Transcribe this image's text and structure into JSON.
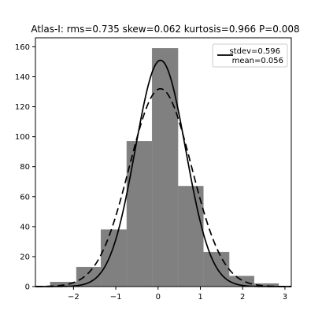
{
  "chart_data": {
    "type": "histogram",
    "title": "Atlas-I:   rms=0.735  skew=0.062   kurtosis=0.966   P=0.008",
    "xlim": [
      -2.9,
      3.15
    ],
    "ylim": [
      0,
      166
    ],
    "xticks": [
      -2,
      -1,
      0,
      1,
      2,
      3
    ],
    "xtick_labels": [
      "−2",
      "−1",
      "0",
      "1",
      "2",
      "3"
    ],
    "yticks": [
      0,
      20,
      40,
      60,
      80,
      100,
      120,
      140,
      160
    ],
    "ytick_labels": [
      "0",
      "20",
      "40",
      "60",
      "80",
      "100",
      "120",
      "140",
      "160"
    ],
    "bins": [
      {
        "x0": -2.55,
        "x1": -1.93,
        "count": 3
      },
      {
        "x0": -1.93,
        "x1": -1.35,
        "count": 13
      },
      {
        "x0": -1.35,
        "x1": -0.74,
        "count": 38
      },
      {
        "x0": -0.74,
        "x1": -0.14,
        "count": 97
      },
      {
        "x0": -0.14,
        "x1": 0.47,
        "count": 159
      },
      {
        "x0": 0.47,
        "x1": 1.07,
        "count": 67
      },
      {
        "x0": 1.07,
        "x1": 1.68,
        "count": 23
      },
      {
        "x0": 1.68,
        "x1": 2.27,
        "count": 7
      },
      {
        "x0": 2.27,
        "x1": 2.85,
        "count": 2
      }
    ],
    "bar_color": "#808080",
    "curves": [
      {
        "style": "solid",
        "mean": 0.056,
        "stdev": 0.596,
        "peak": 151,
        "color": "#000000"
      },
      {
        "style": "dashed",
        "mean": 0.056,
        "stdev": 0.735,
        "peak": 132,
        "color": "#000000"
      }
    ],
    "legend": {
      "placement": "upper-right",
      "line1": "stdev=0.596",
      "line2": "mean=0.056"
    },
    "grid": false
  }
}
